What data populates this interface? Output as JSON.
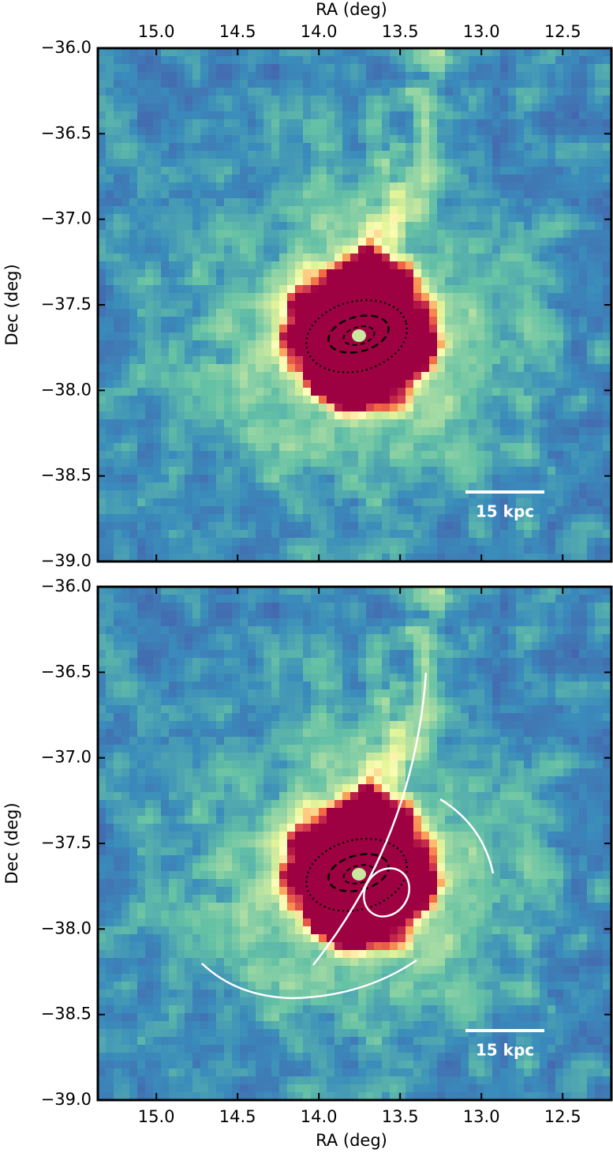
{
  "chart_data": [
    {
      "type": "image",
      "xlabel": "RA (deg)",
      "ylabel": "Dec (deg)",
      "xlim": [
        15.36,
        12.2
      ],
      "ylim": [
        -39.0,
        -36.0
      ],
      "xticks": [
        {
          "value": 15,
          "label": "15.0"
        },
        14.5,
        {
          "value": 14,
          "label": "14.0"
        },
        13.5,
        {
          "value": 13,
          "label": "13.0"
        },
        12.5
      ],
      "yticks": [
        {
          "value": -39,
          "label": "−39.0"
        },
        {
          "value": -38.5,
          "label": "−38.5"
        },
        {
          "value": -38,
          "label": "−38.0"
        },
        {
          "value": -37.5,
          "label": "−37.5"
        },
        {
          "value": -37,
          "label": "−37.0"
        },
        {
          "value": -36.5,
          "label": "−36.5"
        },
        {
          "value": -36,
          "label": "−36.0"
        }
      ],
      "scale_bar_label": "15 kpc"
    },
    {
      "type": "image",
      "xlabel": "RA (deg)",
      "ylabel": "Dec (deg)",
      "xlim": [
        15.36,
        12.2
      ],
      "ylim": [
        -39.0,
        -36.0
      ],
      "xticks": [
        {
          "value": 15,
          "label": "15.0"
        },
        14.5,
        {
          "value": 14,
          "label": "14.0"
        },
        13.5,
        {
          "value": 13,
          "label": "13.0"
        },
        12.5
      ],
      "yticks": [
        {
          "value": -39,
          "label": "−39.0"
        },
        {
          "value": -38.5,
          "label": "−38.5"
        },
        {
          "value": -38,
          "label": "−38.0"
        },
        {
          "value": -37.5,
          "label": "−37.5"
        },
        {
          "value": -37,
          "label": "−37.0"
        },
        {
          "value": -36.5,
          "label": "−36.5"
        },
        {
          "value": -36,
          "label": "−36.0"
        }
      ],
      "scale_bar_label": "15 kpc"
    }
  ]
}
